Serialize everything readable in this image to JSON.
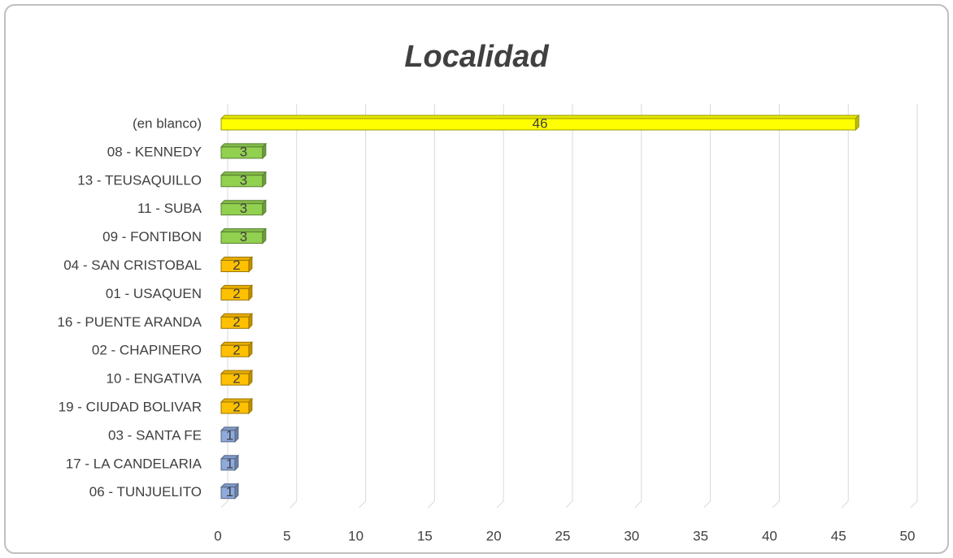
{
  "chart_data": {
    "type": "bar",
    "orientation": "horizontal",
    "title": "Localidad",
    "categories": [
      "(en blanco)",
      "08 - KENNEDY",
      "13 - TEUSAQUILLO",
      "11 - SUBA",
      "09 - FONTIBON",
      "04 - SAN CRISTOBAL",
      "01 - USAQUEN",
      "16 - PUENTE ARANDA",
      "02 - CHAPINERO",
      "10 - ENGATIVA",
      "19 - CIUDAD BOLIVAR",
      "03 - SANTA FE",
      "17 - LA CANDELARIA",
      "06 - TUNJUELITO"
    ],
    "values": [
      46,
      3,
      3,
      3,
      3,
      2,
      2,
      2,
      2,
      2,
      2,
      1,
      1,
      1
    ],
    "colors": [
      "#ffff00",
      "#92d050",
      "#92d050",
      "#92d050",
      "#92d050",
      "#ffc000",
      "#ffc000",
      "#ffc000",
      "#ffc000",
      "#ffc000",
      "#ffc000",
      "#8faadc",
      "#8faadc",
      "#8faadc"
    ],
    "xlim": [
      0,
      50
    ],
    "xticks": [
      0,
      5,
      10,
      15,
      20,
      25,
      30,
      35,
      40,
      45,
      50
    ],
    "grid": true
  }
}
